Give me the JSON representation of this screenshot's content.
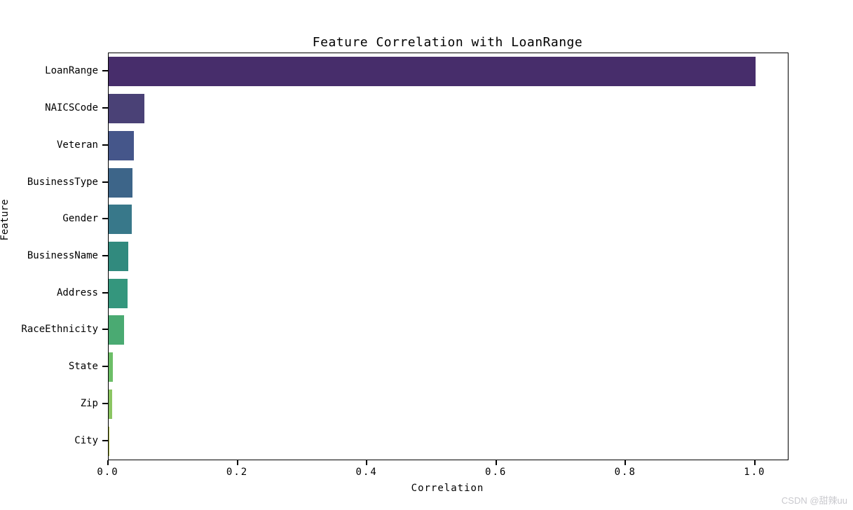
{
  "chart_data": {
    "type": "bar",
    "orientation": "horizontal",
    "title": "Feature Correlation with LoanRange",
    "xlabel": "Correlation",
    "ylabel": "Feature",
    "categories": [
      "LoanRange",
      "NAICSCode",
      "Veteran",
      "BusinessType",
      "Gender",
      "BusinessName",
      "Address",
      "RaceEthnicity",
      "State",
      "Zip",
      "City"
    ],
    "values": [
      1.0,
      0.055,
      0.039,
      0.037,
      0.036,
      0.03,
      0.029,
      0.024,
      0.007,
      0.005,
      0.001
    ],
    "bar_colors": [
      "#472d6b",
      "#4a4176",
      "#45568a",
      "#3d6589",
      "#38788a",
      "#318a7e",
      "#34967d",
      "#4aaa72",
      "#6cbe67",
      "#8bc562",
      "#a8b63c"
    ],
    "xlim": [
      0.0,
      1.05
    ],
    "xticks": [
      0.0,
      0.2,
      0.4,
      0.6,
      0.8,
      1.0
    ],
    "xtick_labels": [
      "0.0",
      "0.2",
      "0.4",
      "0.6",
      "0.8",
      "1.0"
    ],
    "grid": false,
    "legend": null,
    "background": "#ffffff",
    "axis_color": "#000000"
  },
  "watermark": {
    "text": "CSDN @甜辣uu",
    "color": "#c9c9ce"
  }
}
